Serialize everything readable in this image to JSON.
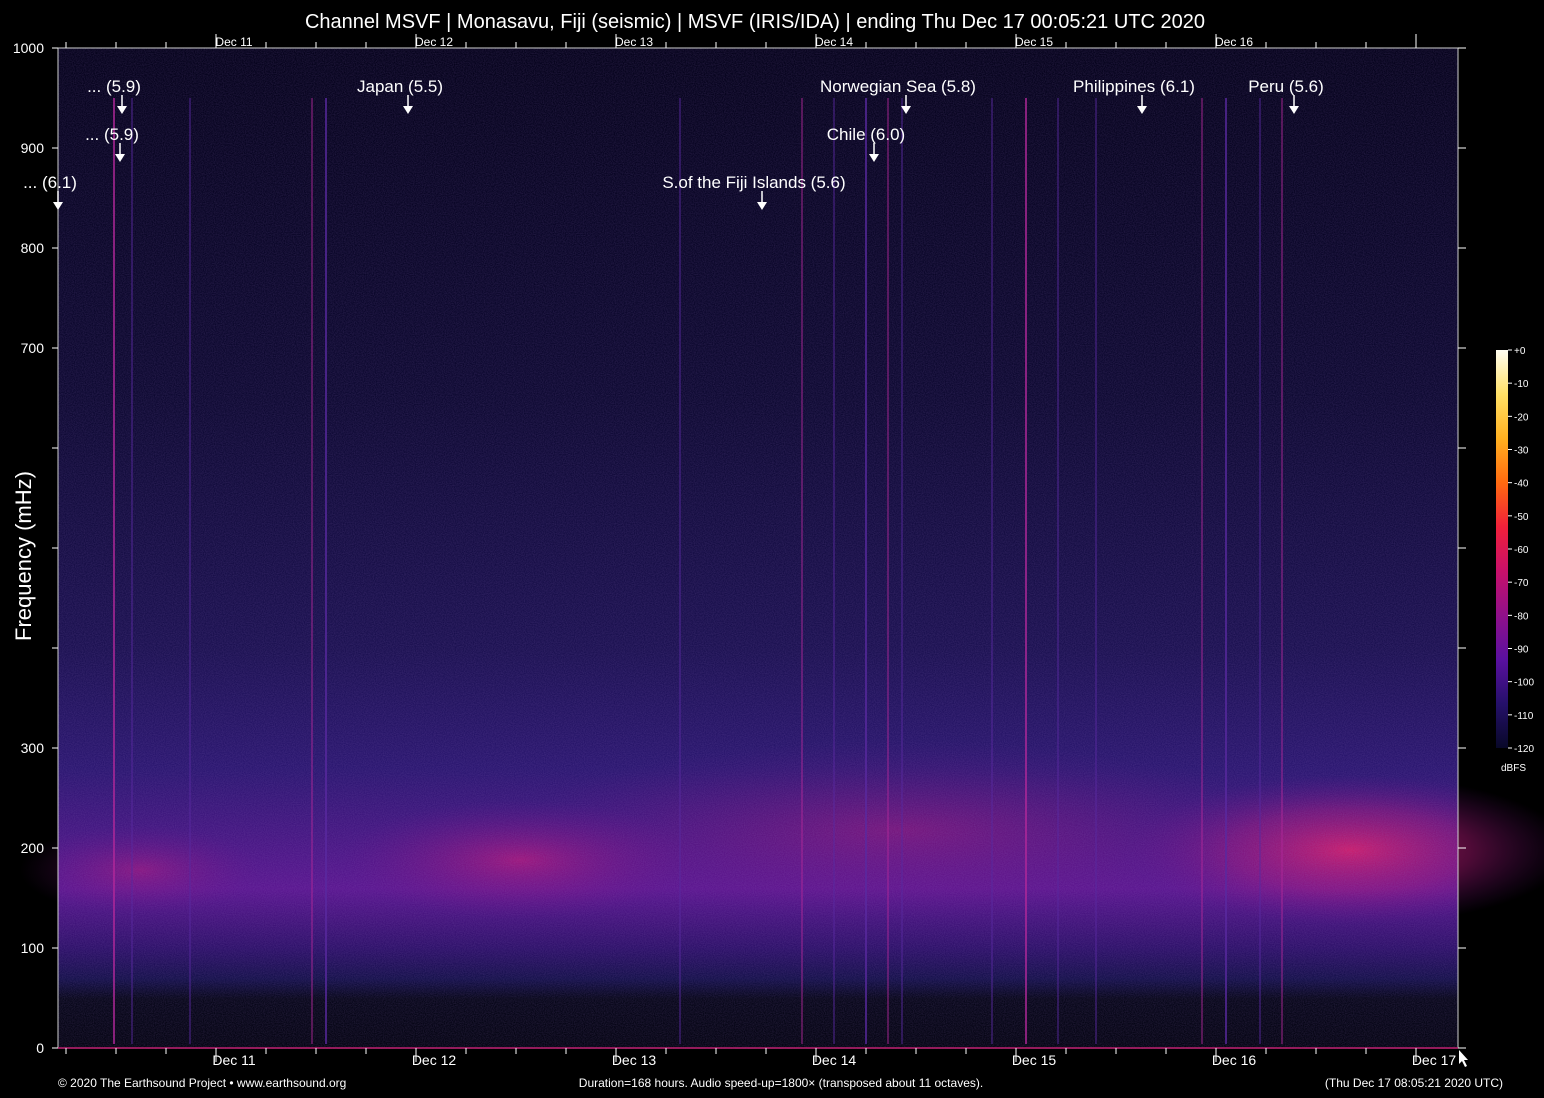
{
  "chart_data": {
    "type": "heatmap",
    "title": "Channel MSVF | Monasavu, Fiji (seismic) | MSVF (IRIS/IDA) | ending Thu Dec 17 00:05:21 UTC 2020",
    "ylabel": "Frequency (mHz)",
    "ylim": [
      0,
      1000
    ],
    "y_ticks": [
      {
        "value": 0,
        "label": "0"
      },
      {
        "value": 100,
        "label": "100"
      },
      {
        "value": 200,
        "label": "200"
      },
      {
        "value": 300,
        "label": "300"
      },
      {
        "value": 400,
        "label": ""
      },
      {
        "value": 500,
        "label": ""
      },
      {
        "value": 600,
        "label": ""
      },
      {
        "value": 700,
        "label": "700"
      },
      {
        "value": 800,
        "label": "800"
      },
      {
        "value": 900,
        "label": "900"
      },
      {
        "value": 1000,
        "label": "1000"
      }
    ],
    "x_axis": {
      "unit": "days",
      "range_start": "Dec 10 00:05 UTC",
      "range_end": "Dec 17 00:05 UTC",
      "duration_hours": 168
    },
    "x_day_labels": [
      {
        "day": 1,
        "label": "Dec 11"
      },
      {
        "day": 2,
        "label": "Dec 12"
      },
      {
        "day": 3,
        "label": "Dec 13"
      },
      {
        "day": 4,
        "label": "Dec 14"
      },
      {
        "day": 5,
        "label": "Dec 15"
      },
      {
        "day": 6,
        "label": "Dec 16"
      },
      {
        "day": 7,
        "label": "Dec 17"
      }
    ],
    "annotations": [
      {
        "label": "... (6.1)",
        "day": 0.21
      },
      {
        "label": "... (5.9)",
        "day": 0.53
      },
      {
        "label": "... (5.9)",
        "day": 0.52
      },
      {
        "label": "Japan (5.5)",
        "day": 1.96
      },
      {
        "label": "S.of the Fiji Islands (5.6)",
        "day": 3.73
      },
      {
        "label": "Norwegian Sea (5.8)",
        "day": 4.45
      },
      {
        "label": "Chile (6.0)",
        "day": 4.29
      },
      {
        "label": "Philippines (6.1)",
        "day": 5.63
      },
      {
        "label": "Peru (5.6)",
        "day": 6.39
      }
    ],
    "events_day": [
      0.49,
      0.58,
      0.87,
      1.48,
      1.55,
      3.32,
      3.93,
      4.09,
      4.25,
      4.36,
      4.43,
      4.88,
      5.05,
      5.21,
      5.4,
      5.93,
      6.05,
      6.22,
      6.33
    ],
    "colorbar": {
      "label": "dBFS",
      "ticks": [
        "+0",
        "-10",
        "-20",
        "-30",
        "-40",
        "-50",
        "-60",
        "-70",
        "-80",
        "-90",
        "-100",
        "-110",
        "-120"
      ],
      "colors": [
        "#fffef2",
        "#ffe066",
        "#ffb020",
        "#ff6a10",
        "#f0203a",
        "#c8106a",
        "#90108a",
        "#5a10a0",
        "#25106a",
        "#080828"
      ]
    },
    "footer": {
      "left": "© 2020 The Earthsound Project • www.earthsound.org",
      "center": "Duration=168 hours. Audio speed-up=1800× (transposed about 11 octaves).",
      "right": "(Thu Dec 17 08:05:21 2020 UTC)"
    }
  }
}
